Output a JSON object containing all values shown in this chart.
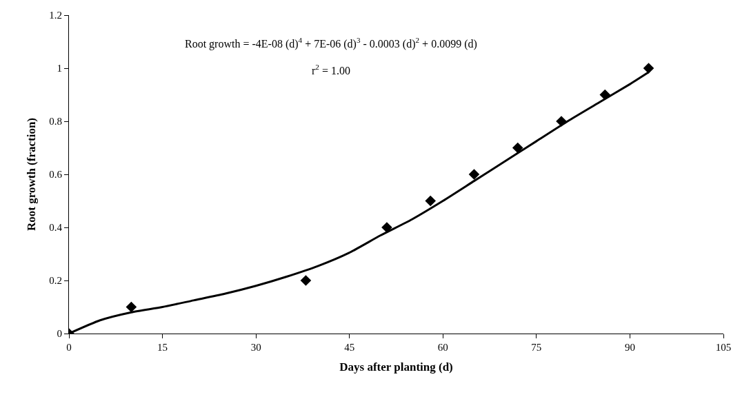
{
  "chart_data": {
    "type": "scatter",
    "xlabel": "Days after planting (d)",
    "ylabel": "Root growth (fraction)",
    "annotations": [
      "Root growth = -4E-08 (d)$^{4}$ + 7E-06 (d)$^{3}$ - 0.0003 (d)$^{2}$ + 0.0099 (d)",
      "r$^{2}$ = 1.00"
    ],
    "series": [
      {
        "marker": "diamond",
        "color": "#000000",
        "x": [
          0,
          10,
          38,
          51,
          58,
          65,
          72,
          79,
          86,
          93
        ],
        "values": [
          0,
          0.1,
          0.2,
          0.4,
          0.5,
          0.6,
          0.7,
          0.8,
          0.9,
          1.0
        ]
      },
      {
        "type": "line",
        "marker": "none",
        "line_style": "solid",
        "color": "#000000",
        "x": [
          0,
          5,
          10,
          15,
          20,
          25,
          30,
          35,
          40,
          45,
          50,
          55,
          60,
          65,
          70,
          75,
          80,
          85,
          90,
          93
        ],
        "values": [
          0,
          0.05,
          0.08,
          0.1,
          0.125,
          0.15,
          0.18,
          0.215,
          0.255,
          0.305,
          0.37,
          0.43,
          0.5,
          0.575,
          0.65,
          0.725,
          0.8,
          0.87,
          0.94,
          0.985
        ]
      }
    ],
    "xlim": [
      0,
      105
    ],
    "xticks": [
      0,
      15,
      30,
      45,
      60,
      75,
      90,
      105
    ],
    "ylim": [
      0,
      1.2
    ],
    "yticks": [
      0,
      0.2,
      0.4,
      0.6,
      0.8,
      1,
      1.2
    ]
  }
}
